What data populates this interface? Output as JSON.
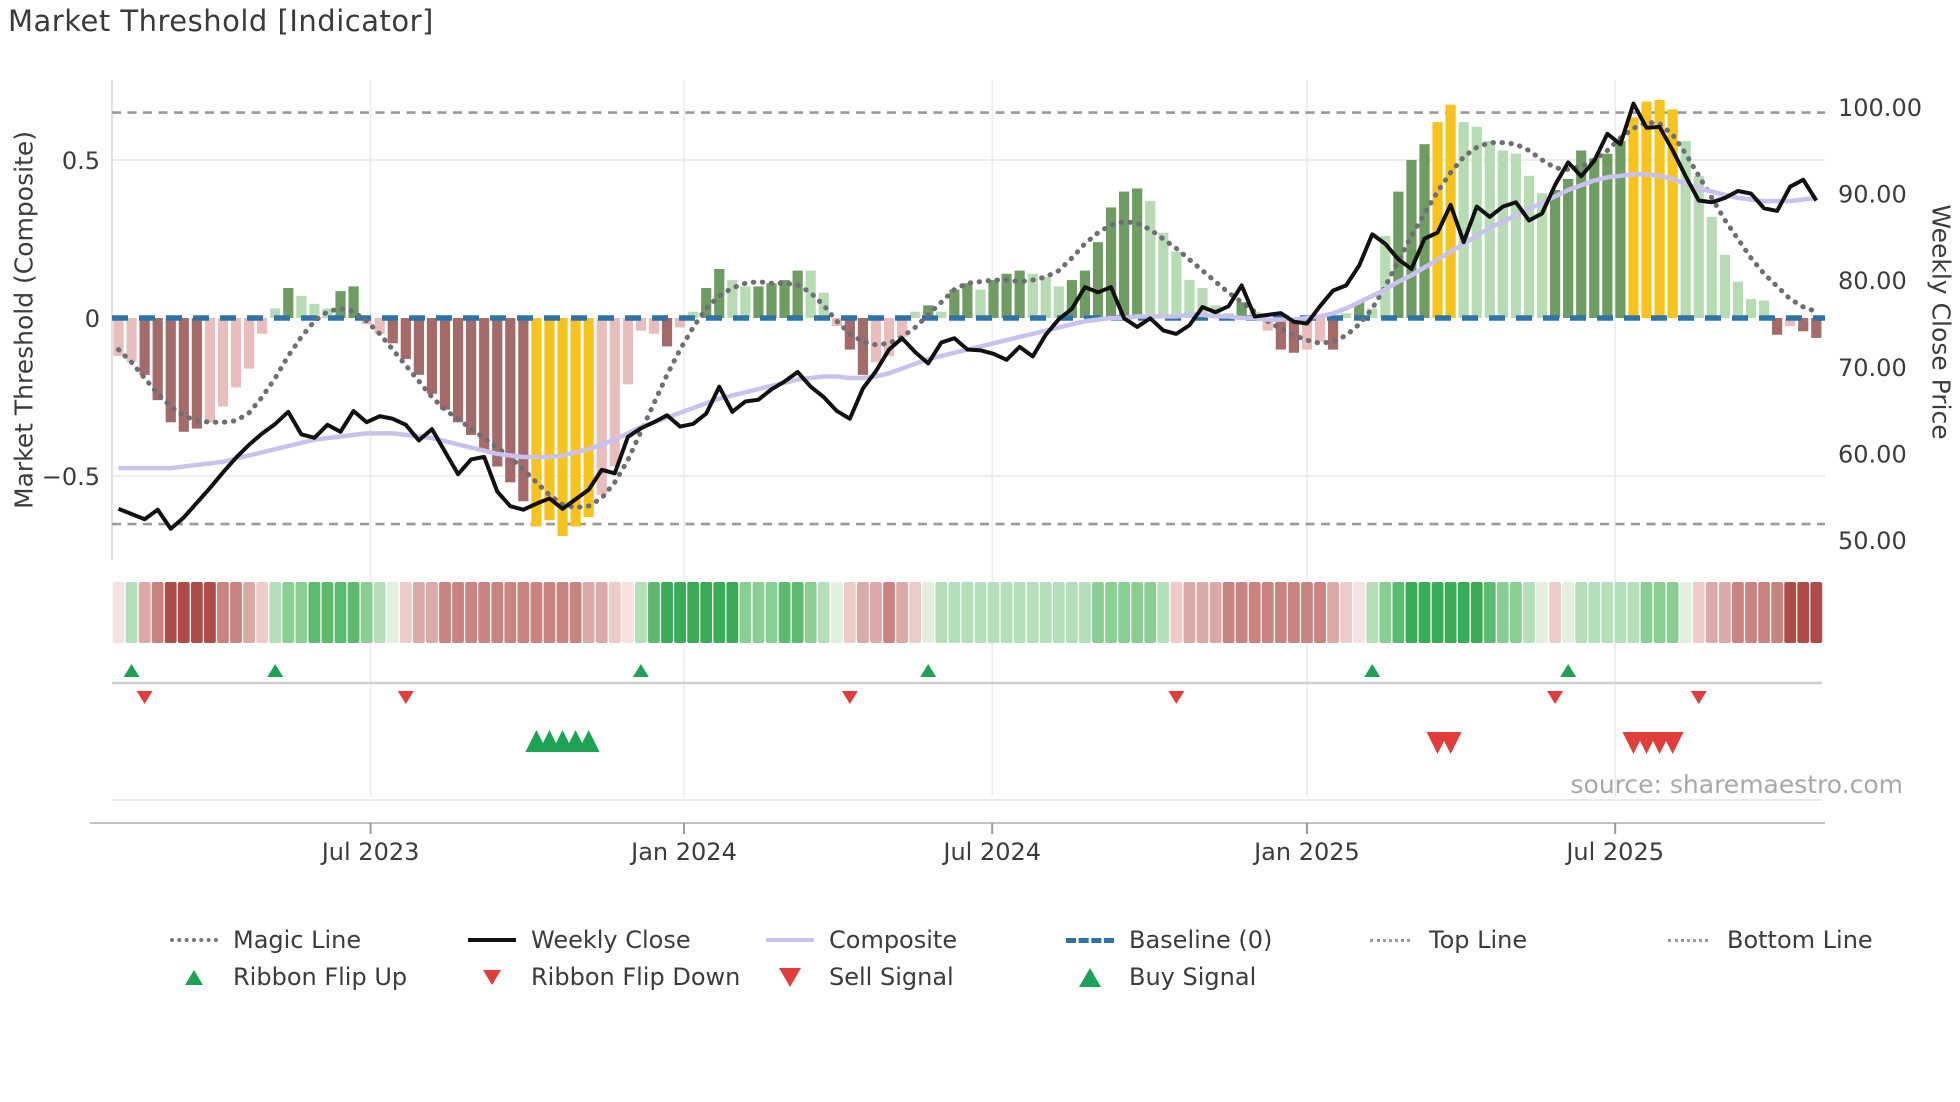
{
  "title": "Market Threshold [Indicator]",
  "source": "source: sharemaestro.com",
  "chart_data": {
    "type": "bar",
    "subtype": "combo-indicator",
    "left_axis": {
      "label": "Market Threshold (Composite)",
      "ticks": [
        {
          "label": "0.5",
          "value": 0.5
        },
        {
          "label": "0",
          "value": 0
        },
        {
          "label": "−0.5",
          "value": -0.5
        }
      ],
      "range": [
        -0.77,
        0.76
      ]
    },
    "right_axis": {
      "label": "Weekly Close Price",
      "ticks": [
        {
          "label": "100.00",
          "value": 100
        },
        {
          "label": "90.00",
          "value": 90
        },
        {
          "label": "80.00",
          "value": 80
        },
        {
          "label": "70.00",
          "value": 70
        },
        {
          "label": "60.00",
          "value": 60
        },
        {
          "label": "50.00",
          "value": 50
        }
      ],
      "range": [
        47.7,
        103.1
      ]
    },
    "x_axis": {
      "ticks": [
        {
          "label": "Jul 2023",
          "week": 19.3
        },
        {
          "label": "Jan 2024",
          "week": 43.3
        },
        {
          "label": "Jul 2024",
          "week": 66.9
        },
        {
          "label": "Jan 2025",
          "week": 91.0
        },
        {
          "label": "Jul 2025",
          "week": 114.6
        }
      ],
      "weeks": 131,
      "grid": true
    },
    "reference_lines": {
      "baseline": 0,
      "top_line": 0.65,
      "bottom_line": -0.652
    },
    "series": [
      {
        "name": "Market Threshold (Composite)",
        "type": "bar",
        "axis": "left",
        "values": [
          -0.12,
          -0.14,
          -0.18,
          -0.26,
          -0.33,
          -0.36,
          -0.35,
          -0.33,
          -0.28,
          -0.22,
          -0.16,
          -0.05,
          0.03,
          0.095,
          0.07,
          0.045,
          0.03,
          0.085,
          0.1,
          -0.02,
          -0.05,
          -0.08,
          -0.13,
          -0.18,
          -0.24,
          -0.29,
          -0.33,
          -0.37,
          -0.42,
          -0.47,
          -0.52,
          -0.58,
          -0.66,
          -0.64,
          -0.69,
          -0.66,
          -0.63,
          -0.56,
          -0.47,
          -0.21,
          -0.04,
          -0.05,
          -0.09,
          -0.03,
          0.02,
          0.095,
          0.155,
          0.12,
          0.1,
          0.1,
          0.11,
          0.12,
          0.15,
          0.15,
          0.08,
          -0.025,
          -0.1,
          -0.18,
          -0.14,
          -0.12,
          -0.06,
          0.02,
          0.04,
          0.02,
          0.09,
          0.11,
          0.09,
          0.12,
          0.14,
          0.15,
          0.14,
          0.13,
          0.1,
          0.12,
          0.15,
          0.24,
          0.35,
          0.4,
          0.41,
          0.37,
          0.27,
          0.21,
          0.12,
          0.095,
          0.04,
          0.015,
          0.05,
          0.02,
          -0.04,
          -0.1,
          -0.11,
          -0.1,
          -0.075,
          -0.1,
          0.015,
          0.05,
          0.03,
          0.26,
          0.4,
          0.5,
          0.55,
          0.62,
          0.675,
          0.62,
          0.605,
          0.56,
          0.53,
          0.52,
          0.45,
          0.395,
          0.405,
          0.44,
          0.53,
          0.505,
          0.52,
          0.56,
          0.635,
          0.685,
          0.69,
          0.66,
          0.56,
          0.45,
          0.32,
          0.2,
          0.115,
          0.06,
          0.055,
          -0.053,
          -0.026,
          -0.042,
          -0.063
        ],
        "bar_colors": [
          "p",
          "p",
          "d",
          "d",
          "d",
          "d",
          "d",
          "p",
          "p",
          "p",
          "p",
          "p",
          "lg",
          "dg",
          "lg",
          "lg",
          "lg",
          "dg",
          "dg",
          "p",
          "p",
          "d",
          "d",
          "d",
          "d",
          "d",
          "d",
          "d",
          "d",
          "d",
          "d",
          "d",
          "y",
          "y",
          "y",
          "y",
          "y",
          "p",
          "p",
          "p",
          "p",
          "p",
          "d",
          "p",
          "lg",
          "dg",
          "dg",
          "lg",
          "lg",
          "dg",
          "dg",
          "dg",
          "dg",
          "lg",
          "lg",
          "p",
          "d",
          "d",
          "p",
          "p",
          "p",
          "lg",
          "dg",
          "lg",
          "dg",
          "dg",
          "lg",
          "dg",
          "dg",
          "dg",
          "lg",
          "lg",
          "lg",
          "dg",
          "dg",
          "dg",
          "dg",
          "dg",
          "dg",
          "lg",
          "lg",
          "lg",
          "lg",
          "lg",
          "lg",
          "lg",
          "dg",
          "lg",
          "p",
          "d",
          "d",
          "p",
          "p",
          "d",
          "lg",
          "dg",
          "lg",
          "lg",
          "dg",
          "dg",
          "dg",
          "y",
          "y",
          "lg",
          "lg",
          "lg",
          "lg",
          "lg",
          "lg",
          "lg",
          "dg",
          "dg",
          "dg",
          "dg",
          "dg",
          "dg",
          "y",
          "y",
          "y",
          "y",
          "lg",
          "lg",
          "lg",
          "lg",
          "lg",
          "lg",
          "lg",
          "d",
          "p",
          "d",
          "d"
        ]
      },
      {
        "name": "Weekly Close",
        "type": "line",
        "axis": "right",
        "values": [
          53.6,
          53.0,
          52.4,
          53.5,
          51.3,
          52.6,
          54.3,
          56.0,
          57.8,
          59.5,
          61.0,
          62.3,
          63.4,
          64.8,
          62.2,
          61.8,
          63.3,
          62.5,
          64.9,
          63.6,
          64.3,
          64.0,
          63.3,
          61.5,
          62.8,
          60.2,
          57.6,
          59.3,
          59.6,
          55.6,
          53.9,
          53.5,
          54.2,
          54.8,
          53.6,
          54.7,
          55.8,
          58.1,
          57.7,
          61.9,
          62.9,
          63.6,
          64.4,
          63.1,
          63.4,
          64.6,
          67.7,
          64.8,
          66.0,
          66.2,
          67.4,
          68.3,
          69.4,
          67.7,
          66.5,
          64.9,
          64.0,
          67.5,
          69.5,
          72.0,
          73.3,
          71.7,
          70.4,
          72.8,
          73.3,
          72.0,
          71.9,
          71.5,
          70.8,
          72.3,
          71.2,
          73.7,
          75.5,
          76.7,
          79.2,
          78.6,
          79.2,
          75.6,
          74.6,
          75.6,
          74.2,
          73.8,
          74.8,
          76.9,
          76.3,
          77.0,
          79.4,
          75.8,
          76.0,
          76.2,
          75.2,
          75.0,
          77.0,
          78.8,
          79.4,
          81.7,
          85.3,
          84.2,
          82.4,
          81.3,
          84.8,
          85.5,
          88.7,
          84.4,
          88.5,
          87.3,
          88.5,
          89.0,
          86.9,
          87.7,
          91.0,
          93.6,
          92.0,
          93.8,
          96.9,
          95.7,
          100.4,
          97.6,
          97.7,
          95.0,
          92.0,
          89.2,
          89.0,
          89.5,
          90.3,
          90.0,
          88.3,
          88.0,
          90.8,
          91.6,
          89.2
        ]
      },
      {
        "name": "Composite",
        "type": "line",
        "axis": "left",
        "values": [
          -0.475,
          -0.475,
          -0.475,
          -0.475,
          -0.475,
          -0.47,
          -0.465,
          -0.46,
          -0.455,
          -0.445,
          -0.435,
          -0.425,
          -0.415,
          -0.405,
          -0.395,
          -0.385,
          -0.38,
          -0.375,
          -0.37,
          -0.365,
          -0.365,
          -0.365,
          -0.37,
          -0.375,
          -0.38,
          -0.39,
          -0.4,
          -0.41,
          -0.42,
          -0.43,
          -0.435,
          -0.44,
          -0.44,
          -0.44,
          -0.435,
          -0.425,
          -0.415,
          -0.4,
          -0.385,
          -0.365,
          -0.345,
          -0.33,
          -0.315,
          -0.3,
          -0.285,
          -0.27,
          -0.255,
          -0.245,
          -0.235,
          -0.225,
          -0.215,
          -0.205,
          -0.195,
          -0.19,
          -0.185,
          -0.185,
          -0.19,
          -0.19,
          -0.185,
          -0.175,
          -0.16,
          -0.145,
          -0.13,
          -0.12,
          -0.11,
          -0.1,
          -0.09,
          -0.08,
          -0.07,
          -0.06,
          -0.05,
          -0.04,
          -0.03,
          -0.02,
          -0.01,
          -0.005,
          0.0,
          0.0,
          0.005,
          0.005,
          0.005,
          0.005,
          0.01,
          0.01,
          0.005,
          0.005,
          0.0,
          0.0,
          -0.005,
          -0.005,
          -0.005,
          0.0,
          0.005,
          0.015,
          0.03,
          0.05,
          0.07,
          0.09,
          0.115,
          0.135,
          0.16,
          0.185,
          0.21,
          0.235,
          0.26,
          0.285,
          0.305,
          0.325,
          0.345,
          0.365,
          0.385,
          0.405,
          0.42,
          0.435,
          0.445,
          0.45,
          0.455,
          0.455,
          0.45,
          0.44,
          0.425,
          0.41,
          0.4,
          0.39,
          0.38,
          0.375,
          0.37,
          0.37,
          0.37,
          0.375,
          0.38
        ]
      },
      {
        "name": "Magic Line",
        "type": "line",
        "axis": "left",
        "values": [
          -0.1,
          -0.14,
          -0.19,
          -0.24,
          -0.28,
          -0.31,
          -0.325,
          -0.33,
          -0.33,
          -0.325,
          -0.3,
          -0.25,
          -0.19,
          -0.12,
          -0.06,
          -0.01,
          0.02,
          0.03,
          0.02,
          -0.01,
          -0.05,
          -0.1,
          -0.15,
          -0.2,
          -0.25,
          -0.29,
          -0.32,
          -0.35,
          -0.38,
          -0.41,
          -0.44,
          -0.48,
          -0.52,
          -0.56,
          -0.59,
          -0.6,
          -0.595,
          -0.57,
          -0.52,
          -0.45,
          -0.36,
          -0.27,
          -0.18,
          -0.1,
          -0.03,
          0.03,
          0.07,
          0.095,
          0.11,
          0.115,
          0.11,
          0.11,
          0.105,
          0.08,
          0.04,
          -0.01,
          -0.05,
          -0.075,
          -0.085,
          -0.08,
          -0.06,
          -0.03,
          0.01,
          0.05,
          0.09,
          0.11,
          0.115,
          0.12,
          0.12,
          0.115,
          0.12,
          0.13,
          0.15,
          0.19,
          0.235,
          0.27,
          0.295,
          0.305,
          0.3,
          0.28,
          0.25,
          0.22,
          0.185,
          0.15,
          0.115,
          0.08,
          0.05,
          0.02,
          -0.01,
          -0.035,
          -0.055,
          -0.07,
          -0.08,
          -0.075,
          -0.055,
          -0.02,
          0.03,
          0.1,
          0.18,
          0.26,
          0.33,
          0.4,
          0.46,
          0.51,
          0.54,
          0.555,
          0.555,
          0.55,
          0.53,
          0.5,
          0.475,
          0.47,
          0.48,
          0.5,
          0.53,
          0.57,
          0.6,
          0.62,
          0.615,
          0.58,
          0.52,
          0.45,
          0.38,
          0.31,
          0.25,
          0.19,
          0.14,
          0.1,
          0.06,
          0.035,
          0.02
        ]
      }
    ],
    "ribbon": [
      "pp",
      "lg",
      "pk",
      "mr",
      "dr",
      "dr",
      "dr",
      "dr",
      "mr",
      "mr",
      "pk",
      "lp",
      "lg",
      "mg",
      "mg",
      "g",
      "g",
      "g",
      "g",
      "mg",
      "lg",
      "pg",
      "lp",
      "pk",
      "pk",
      "mr",
      "mr",
      "mr",
      "mr",
      "mr",
      "mr",
      "mr",
      "mr",
      "mr",
      "mr",
      "mr",
      "pk",
      "pk",
      "lp",
      "pp",
      "lg",
      "g",
      "dg",
      "dg",
      "dg",
      "dg",
      "dg",
      "dg",
      "mg",
      "mg",
      "mg",
      "g",
      "g",
      "mg",
      "lg",
      "pg",
      "lp",
      "pk",
      "pk",
      "mr",
      "pk",
      "lp",
      "pg",
      "lg",
      "lg",
      "lg",
      "lg",
      "lg",
      "lg",
      "lg",
      "lg",
      "lg",
      "lg",
      "lg",
      "lg",
      "mg",
      "mg",
      "mg",
      "mg",
      "mg",
      "lg",
      "lp",
      "pk",
      "pk",
      "pk",
      "mr",
      "mr",
      "mr",
      "mr",
      "mr",
      "mr",
      "mr",
      "mr",
      "pk",
      "lp",
      "pp",
      "lg",
      "mg",
      "g",
      "dg",
      "dg",
      "dg",
      "dg",
      "dg",
      "dg",
      "g",
      "mg",
      "mg",
      "lg",
      "pg",
      "lp",
      "pg",
      "lg",
      "lg",
      "lg",
      "lg",
      "lg",
      "mg",
      "mg",
      "mg",
      "pg",
      "lp",
      "pk",
      "pk",
      "mr",
      "mr",
      "mr",
      "mr",
      "dr",
      "dr",
      "dr"
    ],
    "signals": {
      "ribbon_flip_up_weeks": [
        1,
        12,
        40,
        62,
        96,
        111
      ],
      "ribbon_flip_down_weeks": [
        2,
        22,
        56,
        81,
        110,
        121
      ],
      "buy_signal_weeks": [
        32,
        33,
        34,
        35,
        36
      ],
      "sell_signal_weeks": [
        101,
        102,
        116,
        117,
        118,
        119
      ]
    },
    "colors": {
      "bar": {
        "p": "#e9bdbb",
        "d": "#a46b68",
        "y": "#f8c31e",
        "lg": "#b7dbb2",
        "dg": "#6f9c63"
      },
      "ribbon": {
        "dr": "#ae4c49",
        "mr": "#c98480",
        "pk": "#dcaaa6",
        "lp": "#eccbc8",
        "pp": "#f6e3e1",
        "pg": "#e2f1df",
        "lg": "#b4dfb8",
        "mg": "#8bce94",
        "g": "#5cbb6e",
        "dg": "#3aac58"
      },
      "weekly_close": "#111111",
      "composite": "#c9c1ee",
      "magic": "#6e6e76",
      "baseline": "#2e74a8",
      "ref_line": "#9a9a9a",
      "buy": "#1da353",
      "sell": "#e23d3d"
    }
  },
  "legend": {
    "rows": [
      [
        {
          "label": "Magic Line",
          "swatch": "magic"
        },
        {
          "label": "Weekly Close",
          "swatch": "weekly"
        },
        {
          "label": "Composite",
          "swatch": "composite"
        },
        {
          "label": "Baseline (0)",
          "swatch": "baseline"
        },
        {
          "label": "Top Line",
          "swatch": "topline"
        },
        {
          "label": "Bottom Line",
          "swatch": "bottomline"
        }
      ],
      [
        {
          "label": "Ribbon Flip Up",
          "swatch": "flip-up"
        },
        {
          "label": "Ribbon Flip Down",
          "swatch": "flip-down"
        },
        {
          "label": "Sell Signal",
          "swatch": "sell"
        },
        {
          "label": "Buy Signal",
          "swatch": "buy"
        }
      ]
    ]
  }
}
